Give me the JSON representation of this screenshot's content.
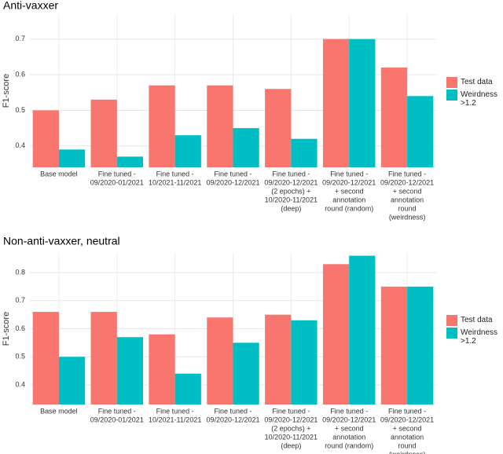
{
  "chart_data": [
    {
      "type": "bar",
      "title": "Anti-vaxxer",
      "y_label": "F1-score",
      "categories": [
        [
          "Base model"
        ],
        [
          "Fine tuned -",
          "09/2020-01/2021"
        ],
        [
          "Fine tuned -",
          "10/2021-11/2021"
        ],
        [
          "Fine tuned -",
          "09/2020-12/2021"
        ],
        [
          "Fine tuned -",
          "09/2020-12/2021",
          "(2 epochs) +",
          "10/2020-11/2021",
          "(deep)"
        ],
        [
          "Fine tuned -",
          "09/2020-12/2021",
          "+ second",
          "annotation",
          "round (random)"
        ],
        [
          "Fine tuned -",
          "09/2020-12/2021",
          "+ second",
          "annotation",
          "round",
          "(weirdness)"
        ]
      ],
      "series": [
        {
          "name": "Test data",
          "color": "#F8766D",
          "values": [
            0.5,
            0.53,
            0.57,
            0.57,
            0.56,
            0.7,
            0.62
          ]
        },
        {
          "name": "Weirdness >1.2",
          "color": "#00BFC4",
          "values": [
            0.39,
            0.37,
            0.43,
            0.45,
            0.42,
            0.7,
            0.54
          ]
        }
      ],
      "ylim": [
        0.34,
        0.77
      ],
      "yticks": [
        0.4,
        0.5,
        0.6,
        0.7
      ],
      "grid": true,
      "legend": "right"
    },
    {
      "type": "bar",
      "title": "Non-anti-vaxxer, neutral",
      "y_label": "F1-score",
      "categories": [
        [
          "Base model"
        ],
        [
          "Fine tuned -",
          "09/2020-01/2021"
        ],
        [
          "Fine tuned -",
          "10/2021-11/2021"
        ],
        [
          "Fine tuned -",
          "09/2020-12/2021"
        ],
        [
          "Fine tuned -",
          "09/2020-12/2021",
          "(2 epochs) +",
          "10/2020-11/2021",
          "(deep)"
        ],
        [
          "Fine tuned -",
          "09/2020-12/2021",
          "+ second",
          "annotation",
          "round (random)"
        ],
        [
          "Fine tuned -",
          "09/2020-12/2021",
          "+ second",
          "annotation",
          "round",
          "(weirdness)"
        ]
      ],
      "series": [
        {
          "name": "Test data",
          "color": "#F8766D",
          "values": [
            0.66,
            0.66,
            0.58,
            0.64,
            0.65,
            0.83,
            0.75
          ]
        },
        {
          "name": "Weirdness >1.2",
          "color": "#00BFC4",
          "values": [
            0.5,
            0.57,
            0.44,
            0.55,
            0.63,
            0.86,
            0.75
          ]
        }
      ],
      "ylim": [
        0.33,
        0.87
      ],
      "yticks": [
        0.4,
        0.5,
        0.6,
        0.7,
        0.8
      ],
      "grid": true,
      "legend": "right"
    }
  ]
}
